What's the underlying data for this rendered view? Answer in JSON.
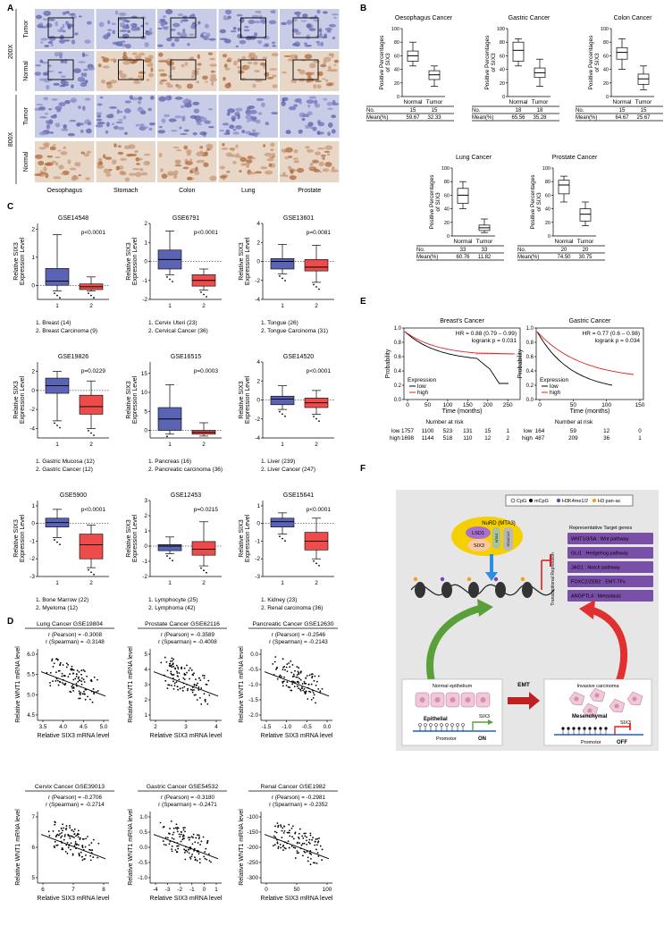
{
  "panel_labels": {
    "a": "A",
    "b": "B",
    "c": "C",
    "d": "D",
    "e": "E",
    "f": "F"
  },
  "panel_a": {
    "columns": [
      "Oesophagus",
      "Stomach",
      "Colon",
      "Lung",
      "Prostate"
    ],
    "row_groups": [
      "200X",
      "800X"
    ],
    "rows": [
      "Tumor",
      "Normal",
      "Tumor",
      "Normal"
    ]
  },
  "panel_b": {
    "ylabel": "Positive Percentages of SIX3",
    "table_row_labels": [
      "No.",
      "Mean(%)"
    ],
    "charts": [
      {
        "title": "Oesophagus Cancer",
        "xticks": [
          "Normal",
          "Tumor"
        ],
        "yticks": [
          "0",
          "20",
          "40",
          "60",
          "80",
          "100"
        ],
        "no": [
          "15",
          "15"
        ],
        "mean": [
          "59.67",
          "32.33"
        ]
      },
      {
        "title": "Gastric Cancer",
        "xticks": [
          "Normal",
          "Tumor"
        ],
        "yticks": [
          "0",
          "20",
          "40",
          "60",
          "80",
          "100"
        ],
        "no": [
          "18",
          "18"
        ],
        "mean": [
          "65.56",
          "35.28"
        ]
      },
      {
        "title": "Colon Cancer",
        "xticks": [
          "Normal",
          "Tumor"
        ],
        "yticks": [
          "0",
          "20",
          "40",
          "60",
          "80",
          "100"
        ],
        "no": [
          "15",
          "15"
        ],
        "mean": [
          "64.67",
          "25.67"
        ]
      },
      {
        "title": "Lung Cancer",
        "xticks": [
          "Normal",
          "Tumor"
        ],
        "yticks": [
          "0",
          "20",
          "40",
          "60",
          "80",
          "100"
        ],
        "no": [
          "33",
          "33"
        ],
        "mean": [
          "60.76",
          "11.82"
        ]
      },
      {
        "title": "Prostate Cancer",
        "xticks": [
          "Normal",
          "Tumor"
        ],
        "yticks": [
          "0",
          "20",
          "40",
          "60",
          "80",
          "100"
        ],
        "no": [
          "20",
          "20"
        ],
        "mean": [
          "74.50",
          "30.75"
        ]
      }
    ]
  },
  "panel_c": {
    "ylabel": "Relative SIX3 Expression Level",
    "charts": [
      {
        "title": "GSE14548",
        "p": "p<0.0001",
        "yticks": [
          "0",
          "1",
          "2"
        ],
        "xticks": [
          "1",
          "2"
        ],
        "legend": [
          "1. Breast (14)",
          "2. Breast Carcinoma (9)"
        ]
      },
      {
        "title": "GSE6791",
        "p": "p<0.0001",
        "yticks": [
          "-2",
          "-1",
          "0",
          "1",
          "2"
        ],
        "xticks": [
          "1",
          "2"
        ],
        "legend": [
          "1. Cervix Uteri (23)",
          "2. Cervical Cancer (36)"
        ]
      },
      {
        "title": "GSE13601",
        "p": "p=0.0081",
        "yticks": [
          "-4",
          "-2",
          "0",
          "2",
          "4"
        ],
        "xticks": [
          "1",
          "2"
        ],
        "legend": [
          "1. Tongue (26)",
          "2. Tongue Carcinoma (31)"
        ]
      },
      {
        "title": "GSE19826",
        "p": "p=0.0229",
        "yticks": [
          "-4",
          "-2",
          "0",
          "2"
        ],
        "xticks": [
          "1",
          "2"
        ],
        "legend": [
          "1. Gastric Mucosa (12)",
          "2. Gastric Cancer (12)"
        ]
      },
      {
        "title": "GSE16515",
        "p": "p=0.0003",
        "yticks": [
          "0",
          "5",
          "10",
          "15"
        ],
        "xticks": [
          "1",
          "2"
        ],
        "legend": [
          "1. Pancreas (16)",
          "2. Pancreatic carcinoma (36)"
        ]
      },
      {
        "title": "GSE14520",
        "p": "p<0.0001",
        "yticks": [
          "-4",
          "-2",
          "0",
          "2",
          "4"
        ],
        "xticks": [
          "1",
          "2"
        ],
        "legend": [
          "1. Liver (239)",
          "2. Liver Cancer (247)"
        ]
      },
      {
        "title": "GSE5900",
        "p": "p<0.0001",
        "yticks": [
          "-3",
          "-2",
          "-1",
          "0",
          "1"
        ],
        "xticks": [
          "1",
          "2"
        ],
        "legend": [
          "1. Bone Marrow (22)",
          "2. Myeloma (12)"
        ]
      },
      {
        "title": "GSE12453",
        "p": "p=0.0215",
        "yticks": [
          "-2",
          "-1",
          "0",
          "1",
          "2",
          "3"
        ],
        "xticks": [
          "1",
          "2"
        ],
        "legend": [
          "1. Lymphocyte (25)",
          "2. Lymphoma (42)"
        ]
      },
      {
        "title": "GSE15641",
        "p": "p<0.0001",
        "yticks": [
          "-3",
          "-2",
          "-1",
          "0",
          "1"
        ],
        "xticks": [
          "1",
          "2"
        ],
        "legend": [
          "1. Kidney (23)",
          "2. Renal carcinoma (36)"
        ]
      }
    ]
  },
  "panel_d": {
    "xlabel": "Relative SIX3 mRNA level",
    "ylabel": "Relative WNT1 mRNA level",
    "charts": [
      {
        "title": "Lung Cancer GSE19804",
        "pearson": "r (Pearson) = -0.3008",
        "spearman": "r (Spearman) = -0.3148",
        "xticks": [
          "3.5",
          "4.0",
          "4.5",
          "5.0"
        ],
        "yticks": [
          "4.5",
          "5.0",
          "5.5",
          "6.0"
        ]
      },
      {
        "title": "Prostate Cancer GSE62116",
        "pearson": "r (Pearson) = -0.3589",
        "spearman": "r (Spearman) = -0.4008",
        "xticks": [
          "2",
          "3",
          "4"
        ],
        "yticks": [
          "1",
          "2",
          "3",
          "4",
          "5"
        ]
      },
      {
        "title": "Pancreatic Cancer GSE12630",
        "pearson": "r (Pearson) = -0.2546",
        "spearman": "r (Spearman) = -0.2143",
        "xticks": [
          "-1.5",
          "-1.0",
          "-0.5",
          "0.0"
        ],
        "yticks": [
          "-2.0",
          "-1.5",
          "-1.0",
          "-0.5",
          "0.0"
        ]
      },
      {
        "title": "Cervix Cancer GSE39013",
        "pearson": "r (Pearson) = -0.2706",
        "spearman": "r (Spearman) = -0.2714",
        "xticks": [
          "6",
          "7",
          "8"
        ],
        "yticks": [
          "5",
          "6",
          "7"
        ]
      },
      {
        "title": "Gastric Cancer GSE54532",
        "pearson": "r (Pearson) = -0.3180",
        "spearman": "r (Spearman) = -0.2471",
        "xticks": [
          "-4",
          "-3",
          "-2",
          "-1",
          "0",
          "1"
        ],
        "yticks": [
          "-1.0",
          "-0.5",
          "0.0",
          "0.5",
          "1.0"
        ]
      },
      {
        "title": "Renal Cancer GSE1982",
        "pearson": "r (Pearson) = -0.2981",
        "spearman": "r (Spearman) = -0.2352",
        "xticks": [
          "0",
          "50",
          "100"
        ],
        "yticks": [
          "-300",
          "-250",
          "-200",
          "-150",
          "-100"
        ]
      }
    ]
  },
  "panel_e": {
    "ylabel": "Probability",
    "xlabel": "Time (months)",
    "legend_title": "Expression",
    "legend": [
      "low",
      "high"
    ],
    "risk_title": "Number at risk",
    "yticks": [
      "0.0",
      "0.2",
      "0.4",
      "0.6",
      "0.8",
      "1.0"
    ],
    "charts": [
      {
        "title": "Breast's Cancer",
        "hr": "HR = 0.88 (0.79 – 0.99)",
        "logrank": "logrank  p = 0.031",
        "xticks": [
          "0",
          "50",
          "100",
          "150",
          "200",
          "250"
        ],
        "risk_low": [
          "low",
          "1757",
          "1100",
          "523",
          "131",
          "15",
          "1"
        ],
        "risk_high": [
          "high",
          "1698",
          "1144",
          "518",
          "110",
          "12",
          "2"
        ]
      },
      {
        "title": "Gastric Cancer",
        "hr": "HR = 0.77 (0.6 – 0.98)",
        "logrank": "logrank  p = 0.034",
        "xticks": [
          "0",
          "50",
          "100",
          "150"
        ],
        "risk_low": [
          "low",
          "164",
          "59",
          "12",
          "0"
        ],
        "risk_high": [
          "high",
          "487",
          "209",
          "36",
          "1"
        ]
      }
    ]
  },
  "panel_f": {
    "legend": [
      "CpG",
      "mCpG",
      "H3K4me1/2",
      "H3 pan-ac"
    ],
    "complex": [
      "NuRD (MTA3)",
      "LSD1",
      "SIX3",
      "MTA3",
      "HDAC1/2"
    ],
    "repression": "Transcriptional Repression",
    "targets_title": "Representative Target genes",
    "targets": [
      "WNT1/3/5A : Wnt pathway",
      "GLI1 : Hedgehog pathway",
      "JAG1 : Notch pathway",
      "FOXC2/ZEB2 : EMT-TFs",
      "ANGPTL4 : Metastasis"
    ],
    "normal": "Normal epithelium",
    "epithelial": "Epithelial",
    "promotor": "Promotor",
    "on": "ON",
    "six3": "SIX3",
    "emt": "EMT",
    "invasive": "Invasive carcinoma",
    "mesenchymal": "Mesenchymal",
    "off": "OFF"
  },
  "colors": {
    "normal_box": "#5b63b5",
    "tumor_box": "#ee4b4b",
    "km_low": "#000000",
    "km_high": "#e02020",
    "target_box": "#7a4fa8"
  }
}
